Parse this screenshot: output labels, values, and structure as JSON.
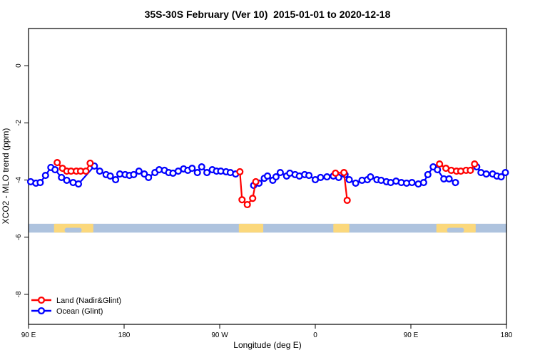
{
  "chart_data": {
    "type": "line",
    "title": "35S-30S February (Ver 10)  2015-01-01 to 2020-12-18",
    "xlabel": "Longitude (deg E)",
    "ylabel": "XCO2 - MLO trend (ppm)",
    "xlim": [
      90,
      540
    ],
    "ylim": [
      -9.05,
      1.3
    ],
    "grid": false,
    "legend_position": "bottom-left-inside",
    "xticks": [
      {
        "value": 90,
        "label": "90 E"
      },
      {
        "value": 180,
        "label": "180"
      },
      {
        "value": 270,
        "label": "90 W"
      },
      {
        "value": 360,
        "label": "0"
      },
      {
        "value": 450,
        "label": "90 E"
      },
      {
        "value": 540,
        "label": "180"
      }
    ],
    "yticks": [
      {
        "value": 0,
        "label": "0"
      },
      {
        "value": -2,
        "label": "-2"
      },
      {
        "value": -4,
        "label": "-4"
      },
      {
        "value": -6,
        "label": "-6"
      },
      {
        "value": -8,
        "label": "-8"
      }
    ],
    "map_strip": {
      "band_top_value": -5.53,
      "band_bottom_value": -5.84,
      "ocean_color": "#aec3de",
      "land_color": "#fbd87c",
      "land_patches_lon": [
        [
          114,
          151
        ],
        [
          288,
          311
        ],
        [
          377,
          392
        ],
        [
          474,
          511
        ]
      ],
      "coast_notches_lon": [
        [
          124,
          140
        ],
        [
          484,
          500
        ]
      ]
    },
    "series": [
      {
        "name": "Land (Nadir&Glint)",
        "color": "#ff0000",
        "segments": [
          [
            [
              117,
              -3.39
            ],
            [
              122,
              -3.59
            ],
            [
              126,
              -3.69
            ],
            [
              130,
              -3.69
            ],
            [
              135,
              -3.69
            ],
            [
              139,
              -3.69
            ],
            [
              144,
              -3.69
            ],
            [
              148,
              -3.41
            ]
          ],
          [
            [
              289,
              -3.71
            ],
            [
              291,
              -4.69
            ],
            [
              296,
              -4.86
            ],
            [
              301,
              -4.64
            ],
            [
              304,
              -4.06
            ]
          ],
          [
            [
              379,
              -3.76
            ],
            [
              387,
              -3.74
            ],
            [
              390,
              -4.71
            ]
          ],
          [
            [
              477,
              -3.44
            ],
            [
              483,
              -3.59
            ],
            [
              488,
              -3.66
            ],
            [
              493,
              -3.69
            ],
            [
              497,
              -3.69
            ],
            [
              502,
              -3.66
            ],
            [
              506,
              -3.66
            ],
            [
              510,
              -3.44
            ]
          ]
        ]
      },
      {
        "name": "Ocean (Glint)",
        "color": "#0000ff",
        "segments": [
          [
            [
              92,
              -4.06
            ],
            [
              97,
              -4.11
            ],
            [
              101,
              -4.09
            ],
            [
              106,
              -3.84
            ],
            [
              111,
              -3.56
            ],
            [
              115,
              -3.64
            ],
            [
              121,
              -3.91
            ],
            [
              126,
              -4.01
            ],
            [
              132,
              -4.09
            ],
            [
              137,
              -4.14
            ],
            [
              152,
              -3.51
            ],
            [
              157,
              -3.69
            ],
            [
              163,
              -3.81
            ],
            [
              167,
              -3.86
            ],
            [
              172,
              -3.99
            ],
            [
              176,
              -3.79
            ],
            [
              181,
              -3.81
            ],
            [
              185,
              -3.84
            ],
            [
              189,
              -3.81
            ],
            [
              194,
              -3.69
            ],
            [
              199,
              -3.79
            ],
            [
              203,
              -3.91
            ],
            [
              209,
              -3.74
            ],
            [
              213,
              -3.64
            ],
            [
              218,
              -3.66
            ],
            [
              222,
              -3.74
            ],
            [
              226,
              -3.76
            ],
            [
              231,
              -3.69
            ],
            [
              236,
              -3.61
            ],
            [
              240,
              -3.66
            ],
            [
              244,
              -3.59
            ],
            [
              249,
              -3.74
            ],
            [
              253,
              -3.54
            ],
            [
              258,
              -3.74
            ],
            [
              263,
              -3.64
            ],
            [
              267,
              -3.69
            ],
            [
              271,
              -3.69
            ],
            [
              276,
              -3.71
            ],
            [
              280,
              -3.74
            ],
            [
              285,
              -3.79
            ]
          ],
          [
            [
              302,
              -4.19
            ],
            [
              307,
              -4.11
            ],
            [
              312,
              -3.94
            ],
            [
              315,
              -3.86
            ],
            [
              320,
              -4.01
            ],
            [
              323,
              -3.89
            ],
            [
              327,
              -3.74
            ],
            [
              333,
              -3.86
            ],
            [
              336,
              -3.76
            ],
            [
              341,
              -3.81
            ],
            [
              345,
              -3.86
            ],
            [
              350,
              -3.81
            ],
            [
              354,
              -3.84
            ],
            [
              360,
              -3.99
            ],
            [
              365,
              -3.91
            ],
            [
              371,
              -3.89
            ],
            [
              377,
              -3.86
            ],
            [
              382,
              -3.91
            ],
            [
              388,
              -3.81
            ],
            [
              392,
              -3.99
            ],
            [
              398,
              -4.11
            ],
            [
              404,
              -4.01
            ],
            [
              409,
              -3.99
            ],
            [
              412,
              -3.89
            ],
            [
              418,
              -3.99
            ],
            [
              422,
              -4.01
            ],
            [
              427,
              -4.06
            ],
            [
              431,
              -4.09
            ],
            [
              436,
              -4.04
            ],
            [
              441,
              -4.09
            ],
            [
              446,
              -4.11
            ],
            [
              451,
              -4.09
            ],
            [
              457,
              -4.14
            ],
            [
              462,
              -4.09
            ],
            [
              466,
              -3.81
            ],
            [
              471,
              -3.54
            ],
            [
              475,
              -3.64
            ],
            [
              481,
              -3.96
            ],
            [
              486,
              -3.96
            ],
            [
              492,
              -4.09
            ]
          ],
          [
            [
              512,
              -3.54
            ],
            [
              516,
              -3.74
            ],
            [
              521,
              -3.79
            ],
            [
              527,
              -3.79
            ],
            [
              531,
              -3.86
            ],
            [
              535,
              -3.89
            ],
            [
              539,
              -3.74
            ]
          ]
        ]
      }
    ],
    "legend": {
      "entries": [
        "Land (Nadir&Glint)",
        "Ocean (Glint)"
      ]
    }
  }
}
